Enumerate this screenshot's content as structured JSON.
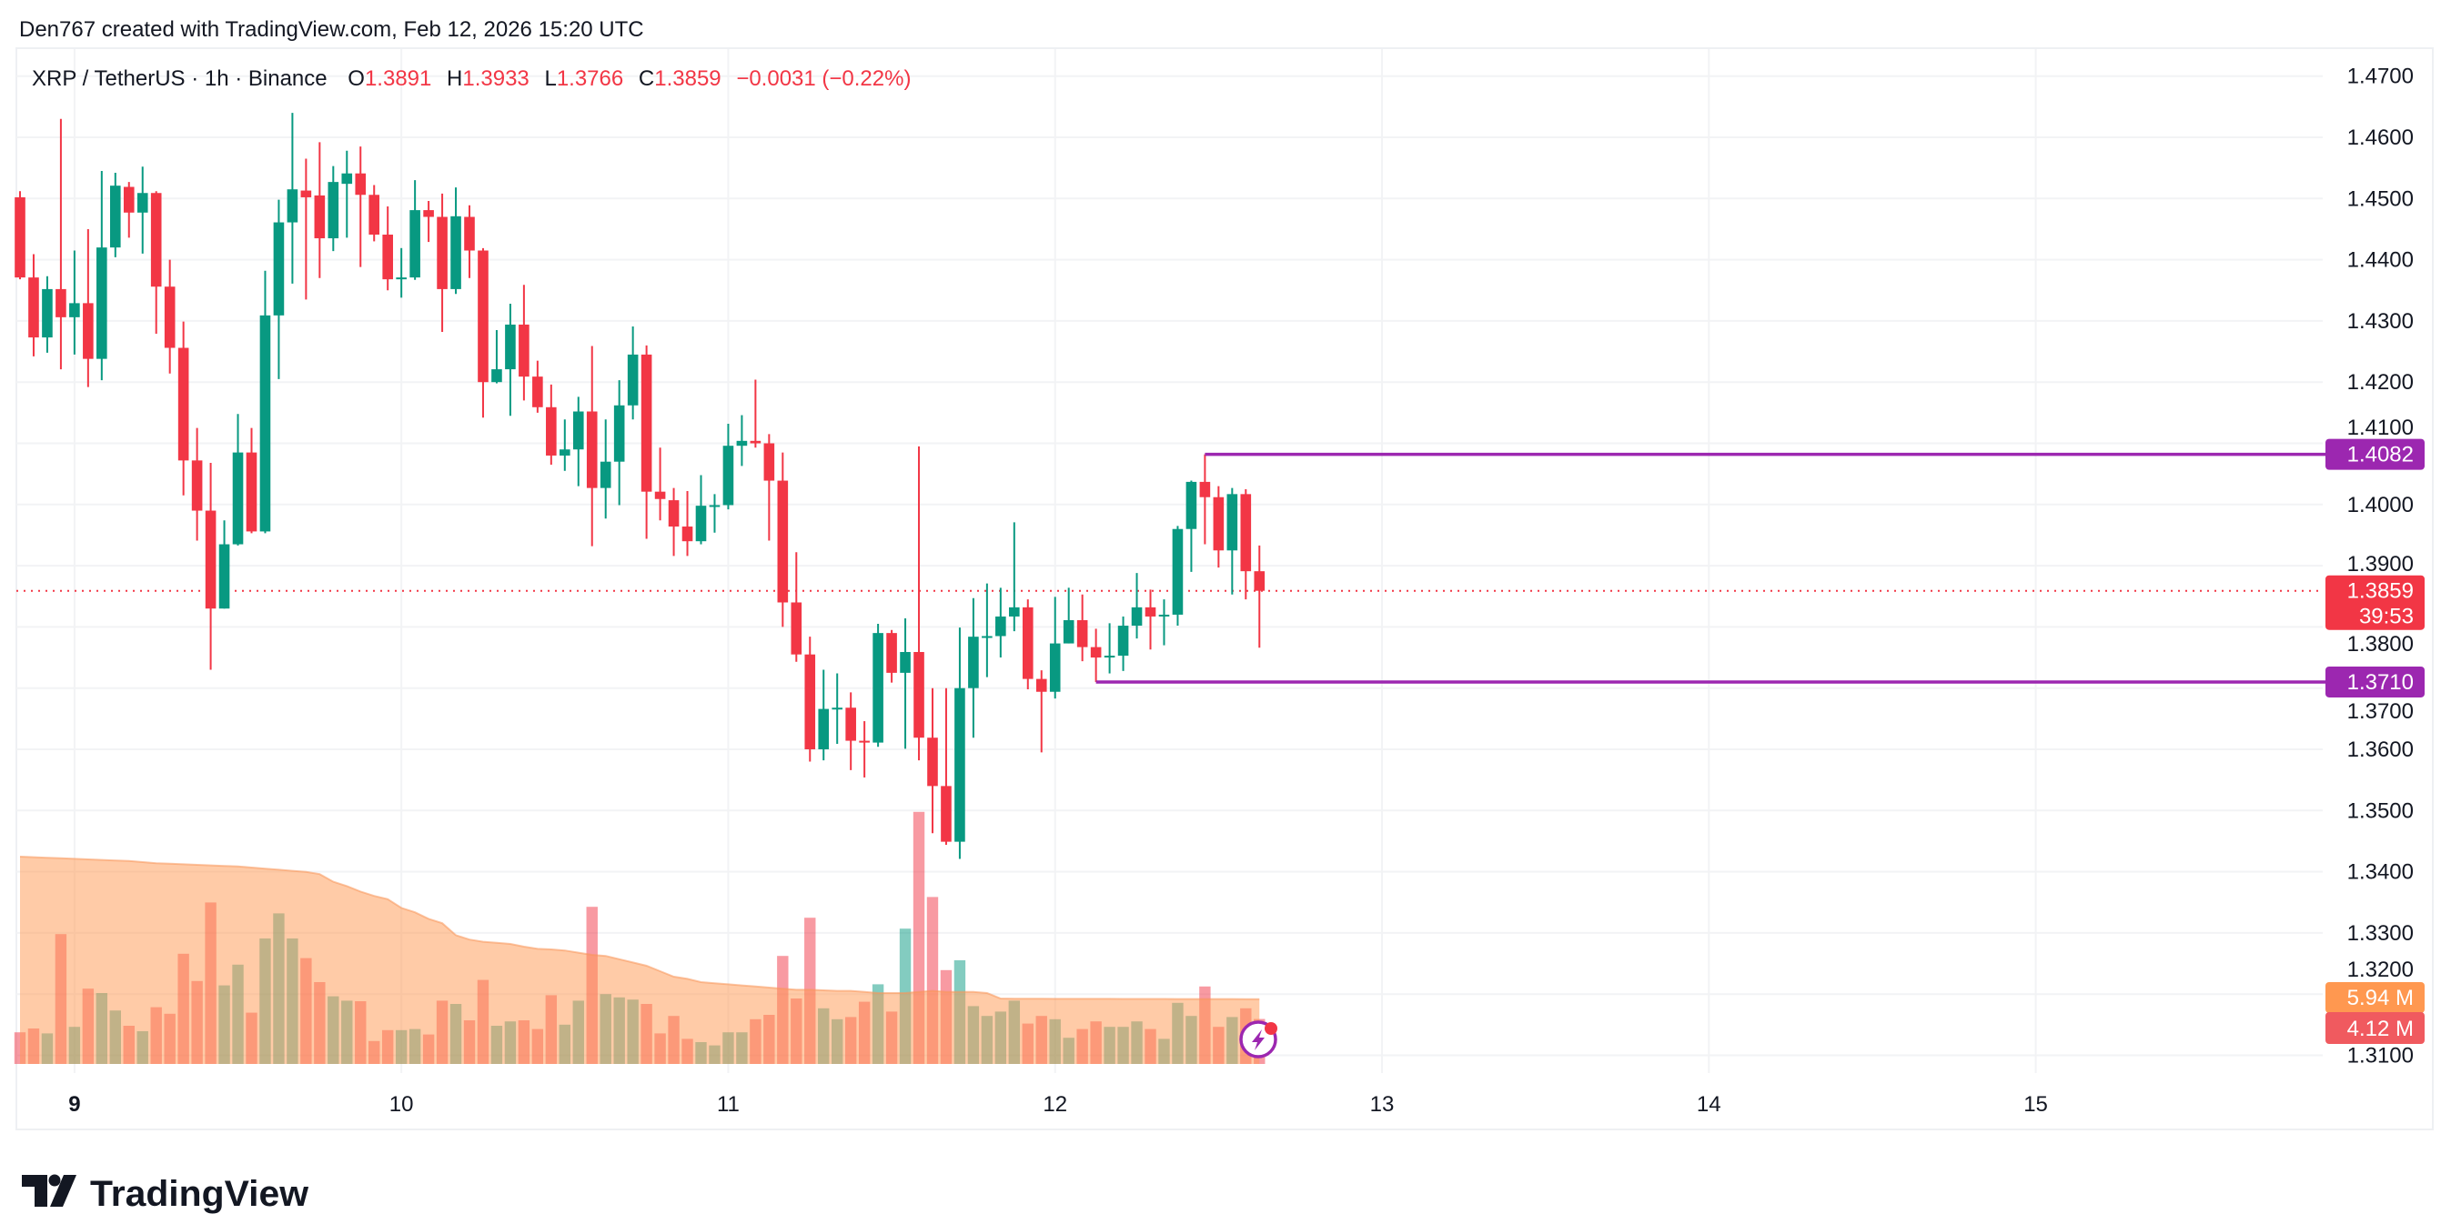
{
  "header": {
    "attribution": "Den767 created with TradingView.com, Feb 12, 2026 15:20 UTC"
  },
  "legend": {
    "symbol": "XRP / TetherUS · 1h · Binance",
    "o_label": "O",
    "o": "1.3891",
    "h_label": "H",
    "h": "1.3933",
    "l_label": "L",
    "l": "1.3766",
    "c_label": "C",
    "c": "1.3859",
    "change": "−0.0031 (−0.22%)"
  },
  "price_axis": {
    "ticks": [
      "1.4700",
      "1.4600",
      "1.4500",
      "1.4400",
      "1.4300",
      "1.4200",
      "1.4100",
      "1.4000",
      "1.3900",
      "1.3800",
      "1.3700",
      "1.3600",
      "1.3500",
      "1.3400",
      "1.3300",
      "1.3200",
      "1.3100"
    ]
  },
  "time_axis": {
    "ticks": [
      {
        "label": "9",
        "day": 9,
        "bold": true
      },
      {
        "label": "10",
        "day": 10
      },
      {
        "label": "11",
        "day": 11
      },
      {
        "label": "12",
        "day": 12
      },
      {
        "label": "13",
        "day": 13
      },
      {
        "label": "14",
        "day": 14
      },
      {
        "label": "15",
        "day": 15
      }
    ]
  },
  "price_labels": {
    "last_price": "1.3859",
    "countdown": "39:53",
    "resistance": "1.4082",
    "support": "1.3710",
    "volume_ma": "5.94 M",
    "volume": "4.12 M"
  },
  "colors": {
    "up": "#089981",
    "down": "#F23645",
    "level_line": "#9C27B0",
    "volume_up": "rgba(8,153,129,0.5)",
    "volume_down": "rgba(242,54,69,0.5)",
    "volume_ma_fill": "rgba(255,152,80,0.5)",
    "volume_ma_label": "#FF9850",
    "volume_label": "#F05A5F",
    "grid": "#F2F3F5",
    "text": "#131722"
  },
  "icons": {
    "lightning_badge": "lightning-bolt-icon",
    "logo": "tradingview-logo-icon"
  },
  "watermark": {
    "logo_text": "TradingView"
  },
  "chart_data": {
    "type": "candlestick",
    "title": "XRP / TetherUS · 1h · Binance",
    "ylim": [
      1.31,
      1.47
    ],
    "grid": true,
    "x": [
      "Feb 8, 20:00",
      "Feb 8, 21:00",
      "Feb 8, 22:00",
      "Feb 8, 23:00",
      "Feb 9, 00:00",
      "Feb 9, 01:00",
      "Feb 9, 02:00",
      "Feb 9, 03:00",
      "Feb 9, 04:00",
      "Feb 9, 05:00",
      "Feb 9, 06:00",
      "Feb 9, 07:00",
      "Feb 9, 08:00",
      "Feb 9, 09:00",
      "Feb 9, 10:00",
      "Feb 9, 11:00",
      "Feb 9, 12:00",
      "Feb 9, 13:00",
      "Feb 9, 14:00",
      "Feb 9, 15:00",
      "Feb 9, 16:00",
      "Feb 9, 17:00",
      "Feb 9, 18:00",
      "Feb 9, 19:00",
      "Feb 9, 20:00",
      "Feb 9, 21:00",
      "Feb 9, 22:00",
      "Feb 9, 23:00",
      "Feb 10, 00:00",
      "Feb 10, 01:00",
      "Feb 10, 02:00",
      "Feb 10, 03:00",
      "Feb 10, 04:00",
      "Feb 10, 05:00",
      "Feb 10, 06:00",
      "Feb 10, 07:00",
      "Feb 10, 08:00",
      "Feb 10, 09:00",
      "Feb 10, 10:00",
      "Feb 10, 11:00",
      "Feb 10, 12:00",
      "Feb 10, 13:00",
      "Feb 10, 14:00",
      "Feb 10, 15:00",
      "Feb 10, 16:00",
      "Feb 10, 17:00",
      "Feb 10, 18:00",
      "Feb 10, 19:00",
      "Feb 10, 20:00",
      "Feb 10, 21:00",
      "Feb 10, 22:00",
      "Feb 10, 23:00",
      "Feb 11, 00:00",
      "Feb 11, 01:00",
      "Feb 11, 02:00",
      "Feb 11, 03:00",
      "Feb 11, 04:00",
      "Feb 11, 05:00",
      "Feb 11, 06:00",
      "Feb 11, 07:00",
      "Feb 11, 08:00",
      "Feb 11, 09:00",
      "Feb 11, 10:00",
      "Feb 11, 11:00",
      "Feb 11, 12:00",
      "Feb 11, 13:00",
      "Feb 11, 14:00",
      "Feb 11, 15:00",
      "Feb 11, 16:00",
      "Feb 11, 17:00",
      "Feb 11, 18:00",
      "Feb 11, 19:00",
      "Feb 11, 20:00",
      "Feb 11, 21:00",
      "Feb 11, 22:00",
      "Feb 11, 23:00",
      "Feb 12, 00:00",
      "Feb 12, 01:00",
      "Feb 12, 02:00",
      "Feb 12, 03:00",
      "Feb 12, 04:00",
      "Feb 12, 05:00",
      "Feb 12, 06:00",
      "Feb 12, 07:00",
      "Feb 12, 08:00",
      "Feb 12, 09:00",
      "Feb 12, 10:00",
      "Feb 12, 11:00",
      "Feb 12, 12:00",
      "Feb 12, 13:00",
      "Feb 12, 14:00",
      "Feb 12, 15:00"
    ],
    "ohlc": [
      [
        1.4502,
        1.4512,
        1.4368,
        1.4371
      ],
      [
        1.4371,
        1.4409,
        1.4242,
        1.4273
      ],
      [
        1.4273,
        1.4373,
        1.4248,
        1.4352
      ],
      [
        1.4352,
        1.463,
        1.4221,
        1.4306
      ],
      [
        1.4306,
        1.4415,
        1.4245,
        1.4329
      ],
      [
        1.4329,
        1.445,
        1.4192,
        1.4238
      ],
      [
        1.4238,
        1.4545,
        1.4203,
        1.442
      ],
      [
        1.442,
        1.4542,
        1.4404,
        1.4521
      ],
      [
        1.4519,
        1.4527,
        1.4436,
        1.4477
      ],
      [
        1.4477,
        1.4552,
        1.441,
        1.4509
      ],
      [
        1.4509,
        1.4512,
        1.4279,
        1.4356
      ],
      [
        1.4356,
        1.44,
        1.4214,
        1.4256
      ],
      [
        1.4256,
        1.4299,
        1.4015,
        1.4072
      ],
      [
        1.4072,
        1.4125,
        1.3941,
        1.399
      ],
      [
        1.399,
        1.4068,
        1.373,
        1.383
      ],
      [
        1.383,
        1.3974,
        1.383,
        1.3935
      ],
      [
        1.3935,
        1.4148,
        1.3933,
        1.4085
      ],
      [
        1.4085,
        1.4125,
        1.3953,
        1.3956
      ],
      [
        1.3956,
        1.4382,
        1.3953,
        1.4309
      ],
      [
        1.4309,
        1.4498,
        1.4205,
        1.4461
      ],
      [
        1.4461,
        1.464,
        1.4361,
        1.4515
      ],
      [
        1.4513,
        1.4565,
        1.4335,
        1.4502
      ],
      [
        1.4505,
        1.4592,
        1.437,
        1.4435
      ],
      [
        1.4435,
        1.4553,
        1.4414,
        1.4527
      ],
      [
        1.4524,
        1.4578,
        1.4436,
        1.4541
      ],
      [
        1.4541,
        1.4585,
        1.4388,
        1.4506
      ],
      [
        1.4506,
        1.4522,
        1.443,
        1.4441
      ],
      [
        1.4441,
        1.4487,
        1.435,
        1.4368
      ],
      [
        1.4368,
        1.4419,
        1.4338,
        1.4371
      ],
      [
        1.4371,
        1.453,
        1.4367,
        1.4481
      ],
      [
        1.4481,
        1.4496,
        1.4429,
        1.447
      ],
      [
        1.447,
        1.4508,
        1.4282,
        1.4352
      ],
      [
        1.4352,
        1.4518,
        1.4344,
        1.4471
      ],
      [
        1.447,
        1.4489,
        1.437,
        1.4415
      ],
      [
        1.4415,
        1.4419,
        1.4142,
        1.42
      ],
      [
        1.42,
        1.4285,
        1.4198,
        1.4221
      ],
      [
        1.4221,
        1.4328,
        1.4145,
        1.4294
      ],
      [
        1.4294,
        1.4359,
        1.417,
        1.4209
      ],
      [
        1.4209,
        1.4235,
        1.415,
        1.4159
      ],
      [
        1.4159,
        1.4196,
        1.4065,
        1.408
      ],
      [
        1.408,
        1.4139,
        1.4055,
        1.409
      ],
      [
        1.409,
        1.4176,
        1.403,
        1.4152
      ],
      [
        1.4152,
        1.4259,
        1.3932,
        1.4027
      ],
      [
        1.4027,
        1.4139,
        1.3977,
        1.407
      ],
      [
        1.407,
        1.4203,
        1.3999,
        1.4162
      ],
      [
        1.4162,
        1.4291,
        1.4139,
        1.4245
      ],
      [
        1.4245,
        1.426,
        1.3944,
        1.4021
      ],
      [
        1.4021,
        1.4093,
        1.3974,
        1.4009
      ],
      [
        1.4007,
        1.4027,
        1.3916,
        1.3964
      ],
      [
        1.3964,
        1.4022,
        1.3916,
        1.394
      ],
      [
        1.394,
        1.4048,
        1.3935,
        1.3998
      ],
      [
        1.3998,
        1.4017,
        1.3954,
        1.3999
      ],
      [
        1.3999,
        1.4132,
        1.3992,
        1.4096
      ],
      [
        1.4096,
        1.4146,
        1.4063,
        1.4104
      ],
      [
        1.4104,
        1.4204,
        1.4093,
        1.41
      ],
      [
        1.41,
        1.4115,
        1.3941,
        1.4039
      ],
      [
        1.4039,
        1.4085,
        1.38,
        1.384
      ],
      [
        1.384,
        1.3922,
        1.3743,
        1.3755
      ],
      [
        1.3755,
        1.3784,
        1.358,
        1.36
      ],
      [
        1.36,
        1.373,
        1.3582,
        1.3666
      ],
      [
        1.3666,
        1.3724,
        1.3609,
        1.3668
      ],
      [
        1.3668,
        1.3693,
        1.3566,
        1.3614
      ],
      [
        1.3614,
        1.3646,
        1.3554,
        1.3611
      ],
      [
        1.3611,
        1.3805,
        1.3604,
        1.379
      ],
      [
        1.379,
        1.3795,
        1.3709,
        1.3725
      ],
      [
        1.3725,
        1.3814,
        1.3601,
        1.3759
      ],
      [
        1.3759,
        1.4095,
        1.3582,
        1.3619
      ],
      [
        1.3619,
        1.37,
        1.3463,
        1.354
      ],
      [
        1.354,
        1.37,
        1.3444,
        1.3449
      ],
      [
        1.3449,
        1.3799,
        1.3421,
        1.37
      ],
      [
        1.37,
        1.3847,
        1.3619,
        1.3784
      ],
      [
        1.3784,
        1.3871,
        1.3718,
        1.3785
      ],
      [
        1.3785,
        1.3864,
        1.375,
        1.3817
      ],
      [
        1.3817,
        1.3971,
        1.3793,
        1.3832
      ],
      [
        1.3832,
        1.3845,
        1.3698,
        1.3715
      ],
      [
        1.3715,
        1.3729,
        1.3595,
        1.3694
      ],
      [
        1.3694,
        1.3849,
        1.3683,
        1.3773
      ],
      [
        1.3773,
        1.3864,
        1.3773,
        1.3811
      ],
      [
        1.3811,
        1.3853,
        1.3744,
        1.3767
      ],
      [
        1.3767,
        1.3797,
        1.371,
        1.375
      ],
      [
        1.375,
        1.3806,
        1.3724,
        1.3753
      ],
      [
        1.3753,
        1.3817,
        1.3728,
        1.3802
      ],
      [
        1.3802,
        1.3888,
        1.3781,
        1.3832
      ],
      [
        1.3832,
        1.3861,
        1.3763,
        1.3817
      ],
      [
        1.3817,
        1.3845,
        1.377,
        1.382
      ],
      [
        1.382,
        1.3965,
        1.3802,
        1.396
      ],
      [
        1.396,
        1.4039,
        1.389,
        1.4037
      ],
      [
        1.4037,
        1.4082,
        1.3935,
        1.4012
      ],
      [
        1.4012,
        1.403,
        1.3897,
        1.3925
      ],
      [
        1.3925,
        1.4027,
        1.3853,
        1.4017
      ],
      [
        1.4017,
        1.4025,
        1.3845,
        1.3891
      ],
      [
        1.3891,
        1.3933,
        1.3766,
        1.3859
      ]
    ],
    "volume_unit": "M",
    "volume": [
      2.9,
      3.25,
      2.8,
      11.9,
      3.4,
      6.9,
      6.5,
      4.9,
      3.5,
      3.0,
      5.2,
      4.6,
      10.1,
      7.6,
      14.8,
      7.2,
      9.1,
      4.7,
      11.5,
      13.8,
      11.5,
      9.7,
      7.5,
      6.2,
      5.8,
      5.75,
      2.1,
      3.1,
      3.1,
      3.2,
      2.7,
      5.8,
      5.5,
      4.0,
      7.7,
      3.5,
      3.9,
      4.0,
      3.2,
      6.3,
      3.6,
      5.8,
      14.4,
      6.4,
      6.1,
      5.9,
      5.5,
      2.8,
      4.4,
      2.3,
      2.0,
      1.7,
      2.9,
      2.9,
      4.1,
      4.5,
      9.9,
      6.0,
      13.4,
      5.1,
      4.1,
      4.3,
      5.7,
      7.3,
      4.8,
      12.4,
      23.1,
      15.3,
      8.6,
      9.5,
      5.3,
      4.4,
      4.8,
      5.8,
      3.7,
      4.4,
      4.1,
      2.4,
      3.2,
      3.9,
      3.4,
      3.4,
      3.9,
      3.2,
      2.3,
      5.6,
      4.4,
      7.1,
      3.4,
      4.3,
      5.1,
      4.12
    ],
    "volume_ma": [
      19.0,
      18.95,
      18.9,
      18.85,
      18.8,
      18.75,
      18.7,
      18.65,
      18.6,
      18.5,
      18.4,
      18.35,
      18.3,
      18.25,
      18.2,
      18.15,
      18.1,
      18.0,
      17.9,
      17.8,
      17.7,
      17.6,
      17.4,
      16.7,
      16.3,
      15.8,
      15.4,
      15.1,
      14.3,
      13.9,
      13.3,
      12.9,
      11.8,
      11.4,
      11.2,
      11.1,
      11.0,
      10.75,
      10.55,
      10.5,
      10.4,
      10.2,
      10.0,
      9.9,
      9.6,
      9.3,
      9.0,
      8.5,
      8.0,
      7.8,
      7.5,
      7.4,
      7.3,
      7.2,
      7.1,
      7.0,
      6.9,
      6.8,
      6.8,
      6.75,
      6.7,
      6.7,
      6.6,
      6.5,
      6.5,
      6.5,
      6.6,
      6.7,
      6.6,
      6.6,
      6.6,
      6.5,
      6.0,
      5.98,
      5.98,
      5.98,
      5.97,
      5.97,
      5.97,
      5.97,
      5.97,
      5.96,
      5.96,
      5.96,
      5.96,
      5.95,
      5.95,
      5.95,
      5.95,
      5.95,
      5.94,
      5.94
    ],
    "last_price": 1.3859,
    "levels": [
      {
        "price": 1.4082,
        "from": "Feb 12, 11:00"
      },
      {
        "price": 1.371,
        "from": "Feb 12, 03:00"
      }
    ]
  }
}
